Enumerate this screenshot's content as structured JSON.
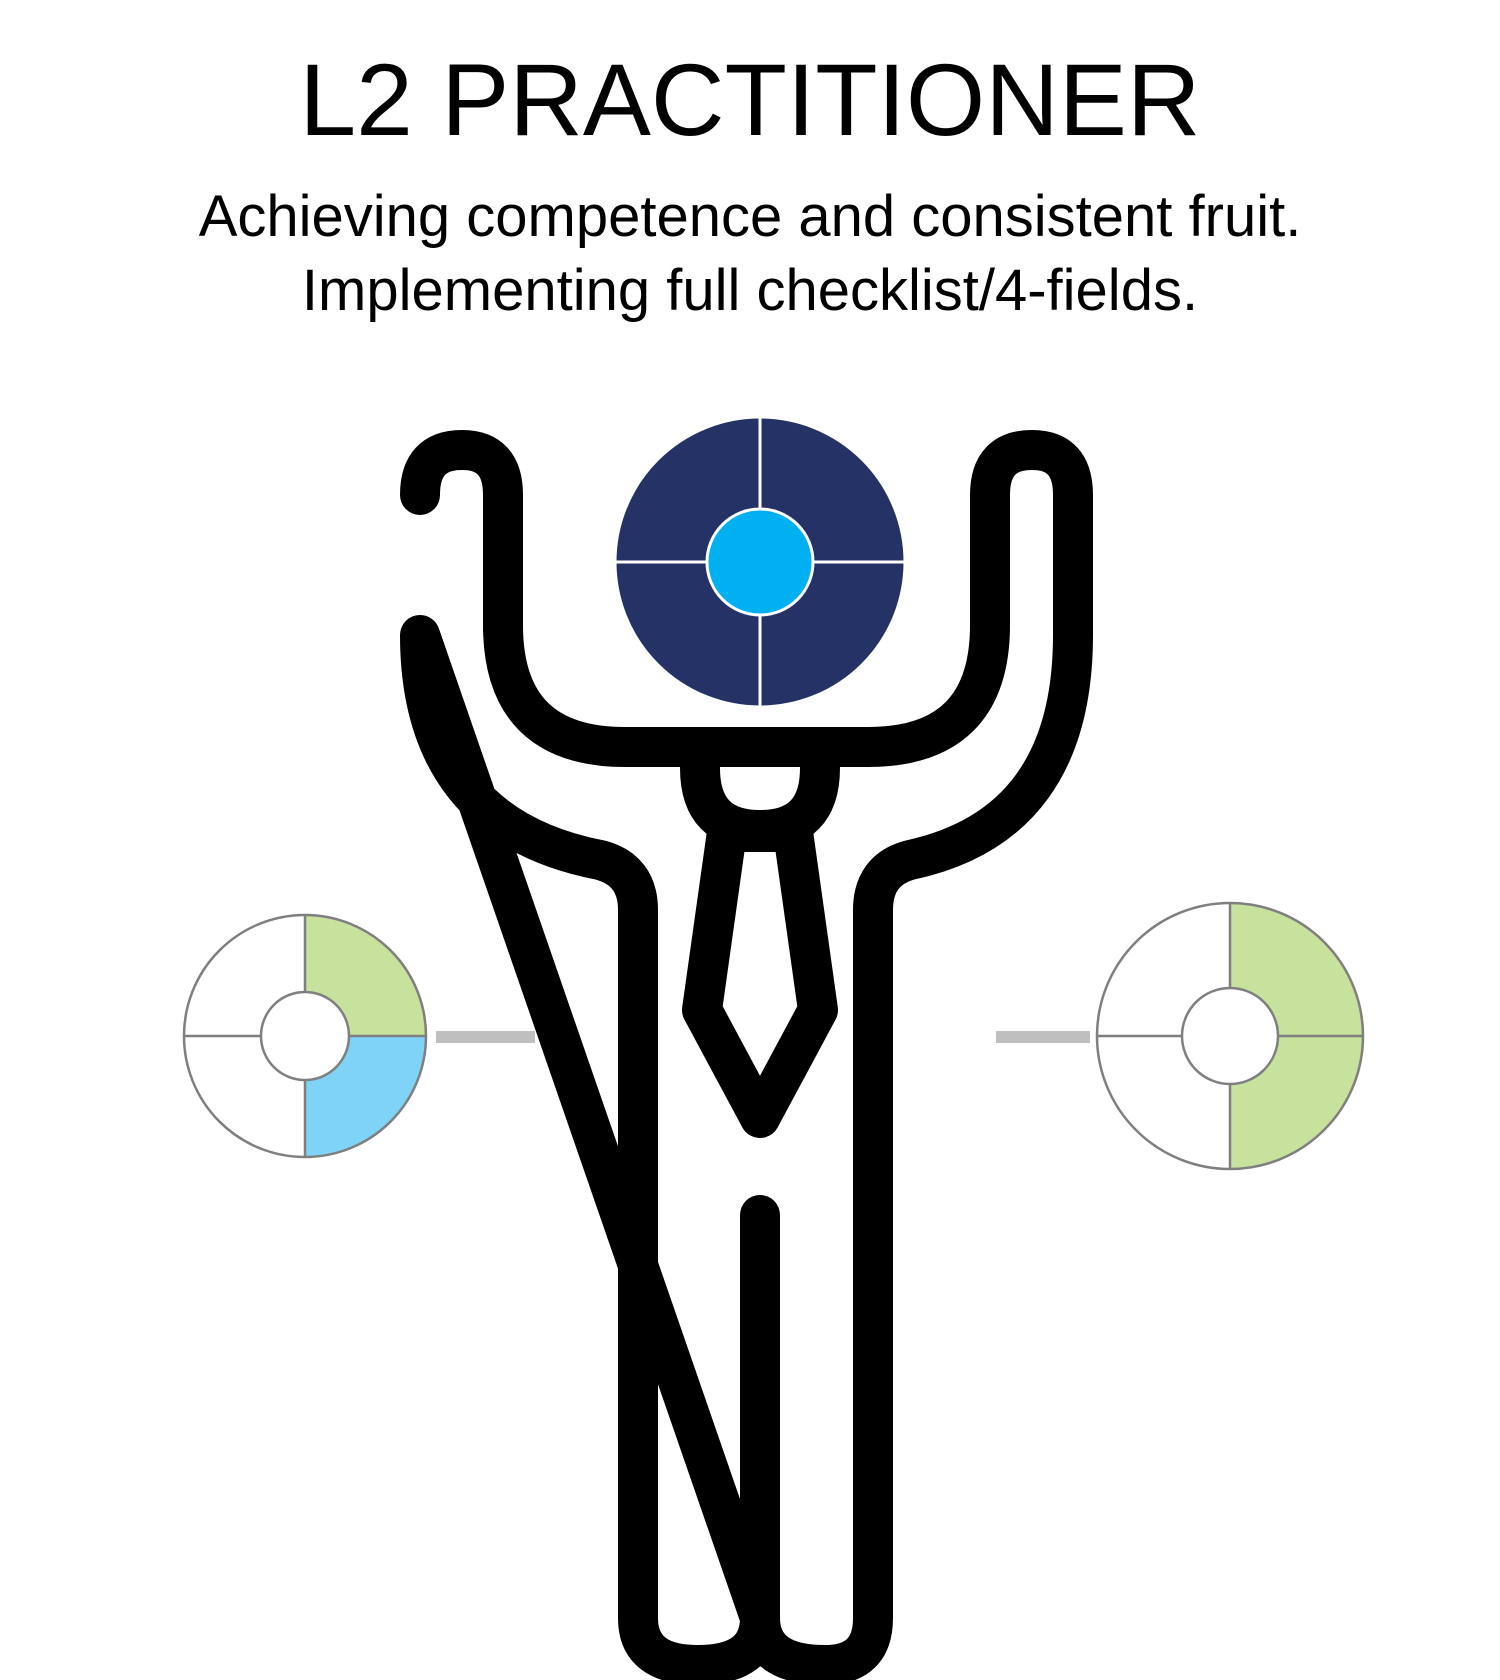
{
  "header": {
    "title": "L2 PRACTITIONER",
    "subtitle_lines": [
      "Achieving competence and consistent fruit.",
      "Implementing full checklist/4-fields."
    ]
  },
  "colors": {
    "figure_stroke": "#000000",
    "head_outer": "#243266",
    "head_center": "#00b0f0",
    "quadrant_green": "#c6e29c",
    "quadrant_blue": "#7fd3f7",
    "wheel_outline": "#7f7f7f",
    "connector": "#bfbfbf"
  },
  "diagram": {
    "left_wheel": {
      "filled_quadrants": [
        "top-right: green",
        "bottom-right: blue"
      ]
    },
    "right_wheel": {
      "filled_quadrants": [
        "top-right: green",
        "bottom-right: green"
      ]
    }
  }
}
